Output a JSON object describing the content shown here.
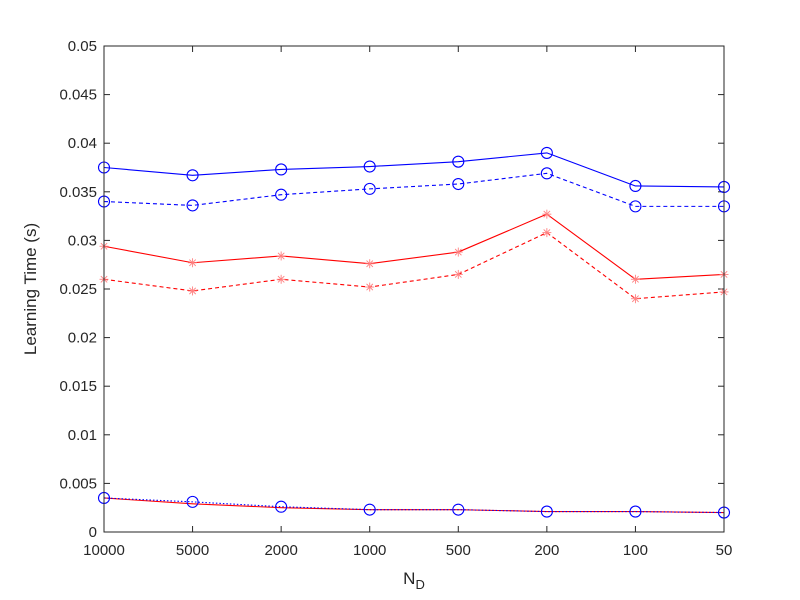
{
  "chart_data": {
    "type": "line",
    "title": "",
    "xlabel": "N",
    "xlabel_subscript": "D",
    "ylabel": "Learning Time (s)",
    "categories": [
      "10000",
      "5000",
      "2000",
      "1000",
      "500",
      "200",
      "100",
      "50"
    ],
    "ylim": [
      0,
      0.05
    ],
    "yticks": [
      "0",
      "0.005",
      "0.01",
      "0.015",
      "0.02",
      "0.025",
      "0.03",
      "0.035",
      "0.04",
      "0.045",
      "0.05"
    ],
    "grid": false,
    "legend": "none",
    "series": [
      {
        "color": "#0000ff",
        "line_style": "solid",
        "marker": "circle",
        "values": [
          0.0375,
          0.0367,
          0.0373,
          0.0376,
          0.0381,
          0.039,
          0.0356,
          0.0355
        ]
      },
      {
        "color": "#0000ff",
        "line_style": "dashed",
        "marker": "circle",
        "values": [
          0.034,
          0.0336,
          0.0347,
          0.0353,
          0.0358,
          0.0369,
          0.0335,
          0.0335
        ]
      },
      {
        "color": "#ff0000",
        "line_style": "solid",
        "marker": "asterisk",
        "values": [
          0.0294,
          0.0277,
          0.0284,
          0.0276,
          0.0288,
          0.0327,
          0.026,
          0.0265
        ]
      },
      {
        "color": "#ff0000",
        "line_style": "dashed",
        "marker": "asterisk",
        "values": [
          0.026,
          0.0248,
          0.026,
          0.0252,
          0.0265,
          0.0308,
          0.024,
          0.0247
        ]
      },
      {
        "color": "#ff0000",
        "line_style": "solid",
        "marker": "none",
        "values": [
          0.0035,
          0.0029,
          0.0025,
          0.0023,
          0.0023,
          0.0021,
          0.0021,
          0.002
        ]
      },
      {
        "color": "#0000ff",
        "line_style": "dotted",
        "marker": "circle",
        "values": [
          0.0035,
          0.0031,
          0.0026,
          0.0023,
          0.0023,
          0.0021,
          0.0021,
          0.002
        ]
      }
    ]
  }
}
